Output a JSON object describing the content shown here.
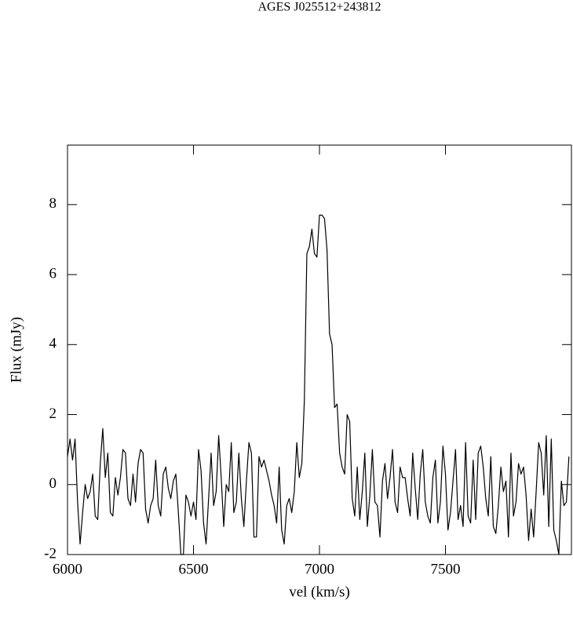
{
  "chart_data": {
    "type": "line",
    "title": "AGES J025512+243812",
    "xlabel": "vel (km/s)",
    "ylabel": "Flux (mJy)",
    "x": [
      6000,
      6010,
      6020,
      6030,
      6040,
      6050,
      6060,
      6070,
      6080,
      6090,
      6100,
      6110,
      6120,
      6130,
      6140,
      6150,
      6160,
      6170,
      6180,
      6190,
      6200,
      6210,
      6220,
      6230,
      6240,
      6250,
      6260,
      6270,
      6280,
      6290,
      6300,
      6310,
      6320,
      6330,
      6340,
      6350,
      6360,
      6370,
      6380,
      6390,
      6400,
      6410,
      6420,
      6430,
      6440,
      6450,
      6460,
      6470,
      6480,
      6490,
      6500,
      6510,
      6520,
      6530,
      6540,
      6550,
      6560,
      6570,
      6580,
      6590,
      6600,
      6610,
      6620,
      6630,
      6640,
      6650,
      6660,
      6670,
      6680,
      6690,
      6700,
      6710,
      6720,
      6730,
      6740,
      6750,
      6760,
      6770,
      6780,
      6790,
      6800,
      6810,
      6820,
      6830,
      6840,
      6850,
      6860,
      6870,
      6880,
      6890,
      6900,
      6910,
      6920,
      6930,
      6940,
      6950,
      6960,
      6970,
      6980,
      6990,
      7000,
      7010,
      7020,
      7030,
      7040,
      7050,
      7060,
      7070,
      7080,
      7090,
      7100,
      7110,
      7120,
      7130,
      7140,
      7150,
      7160,
      7170,
      7180,
      7190,
      7200,
      7210,
      7220,
      7230,
      7240,
      7250,
      7260,
      7270,
      7280,
      7290,
      7300,
      7310,
      7320,
      7330,
      7340,
      7350,
      7360,
      7370,
      7380,
      7390,
      7400,
      7410,
      7420,
      7430,
      7440,
      7450,
      7460,
      7470,
      7480,
      7490,
      7500,
      7510,
      7520,
      7530,
      7540,
      7550,
      7560,
      7570,
      7580,
      7590,
      7600,
      7610,
      7620,
      7630,
      7640,
      7650,
      7660,
      7670,
      7680,
      7690,
      7700,
      7710,
      7720,
      7730,
      7740,
      7750,
      7760,
      7770,
      7780,
      7790,
      7800,
      7810,
      7820,
      7830,
      7840,
      7850,
      7860,
      7870,
      7880,
      7890,
      7900,
      7910,
      7920,
      7930,
      7940,
      7950,
      7960,
      7970,
      7980,
      7990
    ],
    "series": [
      {
        "color": "#000000",
        "values": [
          0.8,
          1.3,
          0.7,
          1.3,
          -0.5,
          -1.7,
          -0.8,
          0.0,
          -0.4,
          -0.2,
          0.3,
          -0.9,
          -1.0,
          0.6,
          1.6,
          0.2,
          0.9,
          -0.8,
          -0.9,
          0.2,
          -0.3,
          0.2,
          1.0,
          0.9,
          -0.4,
          -0.6,
          0.3,
          -0.5,
          0.6,
          1.0,
          0.9,
          -0.7,
          -1.1,
          -0.6,
          -0.4,
          0.7,
          -0.6,
          -0.9,
          0.3,
          0.5,
          -0.1,
          -0.4,
          0.1,
          0.3,
          -0.8,
          -2.0,
          -2.0,
          -0.3,
          -0.5,
          -0.9,
          -0.5,
          -1.0,
          1.0,
          0.4,
          -1.1,
          -1.7,
          -0.4,
          0.9,
          -0.6,
          -0.2,
          1.4,
          0.2,
          -1.2,
          0.0,
          -0.2,
          1.2,
          -0.8,
          -0.5,
          0.9,
          -0.4,
          -1.2,
          0.1,
          1.2,
          0.9,
          -1.5,
          -1.5,
          0.8,
          0.5,
          0.7,
          0.4,
          0.1,
          -0.3,
          -0.6,
          -1.1,
          0.5,
          -1.3,
          -1.7,
          -0.6,
          -0.4,
          -0.8,
          -0.2,
          1.2,
          0.2,
          0.6,
          2.4,
          6.6,
          6.8,
          7.3,
          6.6,
          6.5,
          7.7,
          7.7,
          7.6,
          6.7,
          4.3,
          4.0,
          2.2,
          2.3,
          0.9,
          0.5,
          0.3,
          2.0,
          1.8,
          -0.4,
          -0.9,
          0.5,
          -1.0,
          -0.2,
          0.9,
          -1.2,
          -0.3,
          1.0,
          -0.5,
          -0.6,
          -1.5,
          0.1,
          0.6,
          -0.4,
          0.2,
          1.0,
          -0.5,
          -0.8,
          0.5,
          0.2,
          0.2,
          -0.4,
          -0.9,
          0.9,
          -0.1,
          -1.0,
          0.3,
          1.0,
          -0.5,
          -0.9,
          -1.1,
          0.2,
          0.7,
          -1.1,
          -0.5,
          1.1,
          0.3,
          -1.3,
          -0.8,
          0.1,
          1.0,
          -1.0,
          -0.6,
          -1.2,
          1.2,
          -0.9,
          -1.1,
          0.7,
          -1.0,
          0.9,
          1.1,
          0.5,
          -0.4,
          -0.9,
          0.8,
          -1.2,
          -1.4,
          -0.6,
          0.5,
          -0.2,
          0.1,
          -1.5,
          0.9,
          -0.9,
          -0.5,
          0.6,
          0.3,
          0.5,
          -0.3,
          -1.6,
          -0.7,
          -1.5,
          -0.2,
          1.2,
          0.9,
          -0.3,
          1.4,
          -1.2,
          1.3,
          -1.3,
          -1.6,
          -2.0,
          0.1,
          -0.6,
          -0.5,
          0.8
        ]
      }
    ],
    "xlim": [
      6000,
      8000
    ],
    "xticks": [
      6000,
      6500,
      7000,
      7500
    ],
    "ylim": [
      -2,
      9.7
    ],
    "yticks": [
      -2,
      0,
      2,
      4,
      6,
      8
    ]
  }
}
